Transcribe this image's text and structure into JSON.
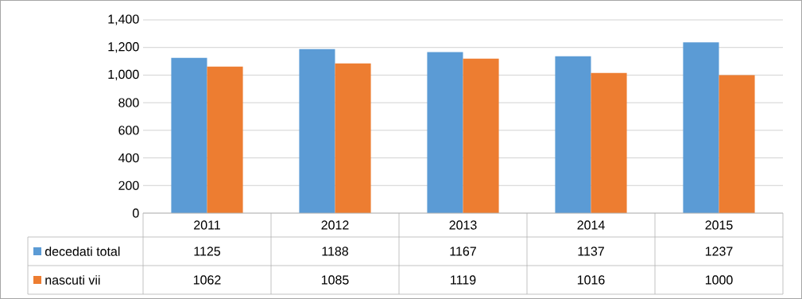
{
  "chart_data": {
    "type": "bar",
    "categories": [
      "2011",
      "2012",
      "2013",
      "2014",
      "2015"
    ],
    "series": [
      {
        "name": "decedati total",
        "color": "#5b9bd5",
        "values": [
          1125,
          1188,
          1167,
          1137,
          1237
        ]
      },
      {
        "name": "nascuti vii",
        "color": "#ed7d31",
        "values": [
          1062,
          1085,
          1119,
          1016,
          1000
        ]
      }
    ],
    "ylim": [
      0,
      1400
    ],
    "yticks": [
      {
        "value": 0,
        "label": "0"
      },
      {
        "value": 200,
        "label": "200"
      },
      {
        "value": 400,
        "label": "400"
      },
      {
        "value": 600,
        "label": "600"
      },
      {
        "value": 800,
        "label": "800"
      },
      {
        "value": 1000,
        "label": "1,000"
      },
      {
        "value": 1200,
        "label": "1,200"
      },
      {
        "value": 1400,
        "label": "1,400"
      }
    ],
    "grid": "y",
    "legend": "bottom left",
    "data_labels": true
  }
}
